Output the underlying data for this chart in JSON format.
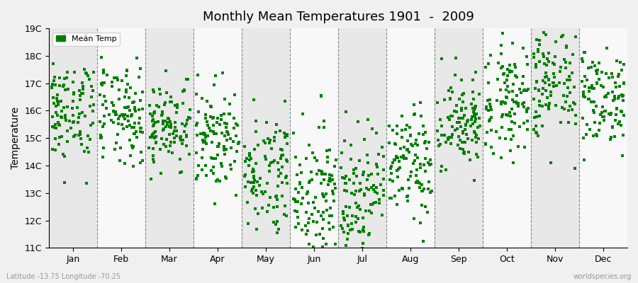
{
  "title": "Monthly Mean Temperatures 1901  -  2009",
  "ylabel": "Temperature",
  "xlabel": "",
  "bottom_left": "Latitude -13.75 Longitude -70.25",
  "bottom_right": "worldspecies.org",
  "legend_label": "Mean Temp",
  "marker_color": "#008000",
  "bg_color": "#f0f0f0",
  "band_colors": [
    "#e8e8e8",
    "#f8f8f8"
  ],
  "ylim": [
    11,
    19
  ],
  "yticks": [
    11,
    12,
    13,
    14,
    15,
    16,
    17,
    18,
    19
  ],
  "months": [
    "Jan",
    "Feb",
    "Mar",
    "Apr",
    "May",
    "Jun",
    "Jul",
    "Aug",
    "Sep",
    "Oct",
    "Nov",
    "Dec"
  ],
  "monthly_means": [
    16.0,
    15.8,
    15.5,
    15.0,
    13.8,
    13.0,
    13.0,
    14.0,
    15.5,
    16.5,
    17.0,
    16.5
  ],
  "monthly_stds": [
    1.0,
    0.9,
    0.8,
    0.9,
    1.1,
    1.2,
    1.2,
    1.0,
    0.9,
    1.0,
    1.1,
    0.9
  ],
  "n_years": 109,
  "seed": 42
}
